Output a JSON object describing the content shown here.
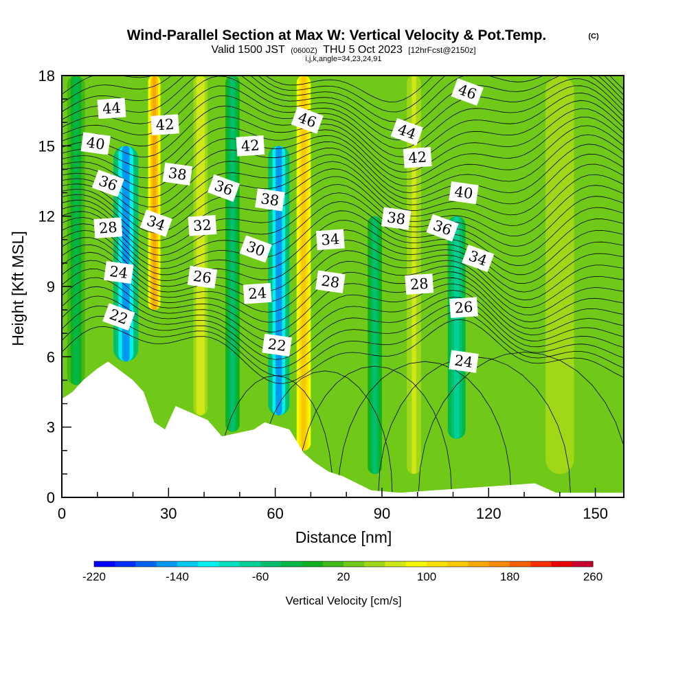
{
  "chart_data": {
    "type": "heatmap",
    "title": "Wind-Parallel Section at Max W: Vertical Velocity & Pot.Temp.",
    "title_mark": "(C)",
    "subtitle_parts": [
      "Valid 1500 JST",
      "(0600Z)",
      "THU 5 Oct 2023",
      "[12hrFcst@2150z]"
    ],
    "subtitle2": "i,j,k,angle=34,23,24,91",
    "xlabel": "Distance [nm]",
    "ylabel": "Height [Kft MSL]",
    "xlim": [
      0,
      158
    ],
    "ylim": [
      0,
      18
    ],
    "x_ticks": [
      0,
      30,
      60,
      90,
      120,
      150
    ],
    "x_tick_labels": [
      "0",
      "30",
      "60",
      "90",
      "120",
      "150"
    ],
    "y_ticks": [
      0,
      3,
      6,
      9,
      12,
      15,
      18
    ],
    "y_tick_labels": [
      "0",
      "3",
      "6",
      "9",
      "12",
      "15",
      "18"
    ],
    "colorbar": {
      "title": "Vertical Velocity [cm/s]",
      "min": -220,
      "max": 260,
      "step": 20,
      "tick_labels": [
        "-220",
        "-140",
        "-60",
        "20",
        "100",
        "180",
        "260"
      ],
      "colors": [
        "#0000ff",
        "#0030f8",
        "#0064f0",
        "#0098f0",
        "#00c8f0",
        "#00f0f0",
        "#00e0c0",
        "#00d098",
        "#00c070",
        "#00b848",
        "#10b020",
        "#40b818",
        "#70c818",
        "#a0d818",
        "#d0e818",
        "#f8f800",
        "#f8e000",
        "#f8c800",
        "#f8a800",
        "#f88800",
        "#f86000",
        "#f83000",
        "#e80000",
        "#c80030",
        "#a80060",
        "#800080"
      ]
    },
    "terrain_kft": [
      [
        0,
        4.2
      ],
      [
        3,
        4.5
      ],
      [
        6,
        5.0
      ],
      [
        10,
        5.5
      ],
      [
        13,
        5.8
      ],
      [
        20,
        5.0
      ],
      [
        23,
        4.5
      ],
      [
        26,
        3.2
      ],
      [
        29,
        2.9
      ],
      [
        32,
        3.9
      ],
      [
        41,
        3.3
      ],
      [
        45,
        2.6
      ],
      [
        54,
        2.9
      ],
      [
        57,
        3.2
      ],
      [
        64,
        2.9
      ],
      [
        68,
        1.9
      ],
      [
        71,
        1.5
      ],
      [
        75,
        1.1
      ],
      [
        79,
        0.9
      ],
      [
        83,
        0.6
      ],
      [
        87,
        0.3
      ],
      [
        95,
        0.2
      ],
      [
        133,
        0.6
      ],
      [
        139,
        0.2
      ],
      [
        158,
        0.2
      ]
    ],
    "vertical_velocity_cm_s": {
      "background": 30,
      "bands": [
        {
          "x": 4,
          "width": 5,
          "value": -30,
          "zmin": 4.8,
          "zmax": 18
        },
        {
          "x": 18,
          "width": 7,
          "value": -150,
          "zmin": 5.8,
          "zmax": 15
        },
        {
          "x": 26,
          "width": 3.5,
          "value": 150,
          "zmin": 8,
          "zmax": 18
        },
        {
          "x": 39,
          "width": 4,
          "value": 70,
          "zmin": 3.5,
          "zmax": 18
        },
        {
          "x": 48,
          "width": 4,
          "value": -50,
          "zmin": 2.8,
          "zmax": 18
        },
        {
          "x": 61,
          "width": 6,
          "value": -150,
          "zmin": 3.5,
          "zmax": 15
        },
        {
          "x": 68,
          "width": 4,
          "value": 130,
          "zmin": 2,
          "zmax": 18
        },
        {
          "x": 77,
          "width": 5,
          "value": 20,
          "zmin": 1,
          "zmax": 18
        },
        {
          "x": 88,
          "width": 4,
          "value": -60,
          "zmin": 1,
          "zmax": 12
        },
        {
          "x": 99,
          "width": 4,
          "value": 60,
          "zmin": 1,
          "zmax": 18
        },
        {
          "x": 111,
          "width": 5,
          "value": -80,
          "zmin": 2.5,
          "zmax": 12
        },
        {
          "x": 140,
          "width": 8,
          "value": 50,
          "zmin": 1,
          "zmax": 18
        }
      ]
    },
    "potential_temperature_labels": [
      {
        "value": "44",
        "x": 14,
        "z": 16.6
      },
      {
        "value": "40",
        "x": 9.5,
        "z": 15.1
      },
      {
        "value": "36",
        "x": 13,
        "z": 13.4
      },
      {
        "value": "28",
        "x": 13,
        "z": 11.5
      },
      {
        "value": "24",
        "x": 16,
        "z": 9.6
      },
      {
        "value": "22",
        "x": 16,
        "z": 7.7
      },
      {
        "value": "42",
        "x": 29,
        "z": 15.9
      },
      {
        "value": "38",
        "x": 32.5,
        "z": 13.8
      },
      {
        "value": "34",
        "x": 26.5,
        "z": 11.7
      },
      {
        "value": "32",
        "x": 39.5,
        "z": 11.6
      },
      {
        "value": "26",
        "x": 39.5,
        "z": 9.4
      },
      {
        "value": "36",
        "x": 45.5,
        "z": 13.2
      },
      {
        "value": "42",
        "x": 53,
        "z": 15.0
      },
      {
        "value": "38",
        "x": 58.5,
        "z": 12.7
      },
      {
        "value": "30",
        "x": 54.5,
        "z": 10.6
      },
      {
        "value": "24",
        "x": 55,
        "z": 8.7
      },
      {
        "value": "22",
        "x": 60.5,
        "z": 6.5
      },
      {
        "value": "46",
        "x": 69,
        "z": 16.1
      },
      {
        "value": "34",
        "x": 75.5,
        "z": 11.0
      },
      {
        "value": "28",
        "x": 75.5,
        "z": 9.2
      },
      {
        "value": "44",
        "x": 97,
        "z": 15.6
      },
      {
        "value": "42",
        "x": 100,
        "z": 14.5
      },
      {
        "value": "38",
        "x": 94,
        "z": 11.9
      },
      {
        "value": "36",
        "x": 107,
        "z": 11.5
      },
      {
        "value": "28",
        "x": 100.5,
        "z": 9.1
      },
      {
        "value": "40",
        "x": 113,
        "z": 13.0
      },
      {
        "value": "34",
        "x": 117,
        "z": 10.2
      },
      {
        "value": "26",
        "x": 113,
        "z": 8.1
      },
      {
        "value": "24",
        "x": 113,
        "z": 5.8
      },
      {
        "value": "46",
        "x": 114,
        "z": 17.3
      }
    ],
    "legend": "colorbar-bottom",
    "grid": false
  }
}
